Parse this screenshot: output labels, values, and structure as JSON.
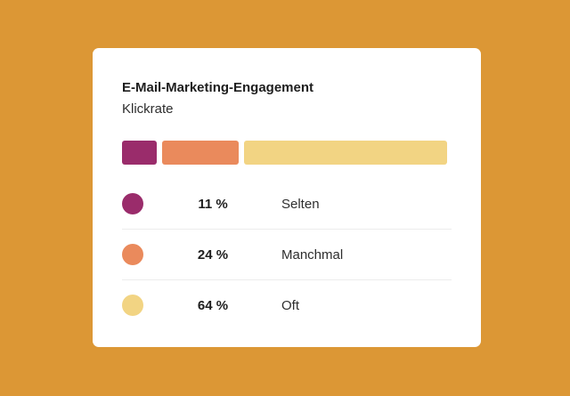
{
  "card": {
    "title": "E-Mail-Marketing-Engagement",
    "subtitle": "Klickrate"
  },
  "chart_data": {
    "type": "bar",
    "stacked": true,
    "orientation": "horizontal",
    "title": "E-Mail-Marketing-Engagement",
    "subtitle": "Klickrate",
    "categories": [
      "Selten",
      "Manchmal",
      "Oft"
    ],
    "values": [
      11,
      24,
      64
    ],
    "value_labels": [
      "11 %",
      "24 %",
      "64 %"
    ],
    "unit": "%",
    "colors": [
      "#9A2C6B",
      "#EA8A5C",
      "#F2D483"
    ],
    "legend": "below"
  }
}
